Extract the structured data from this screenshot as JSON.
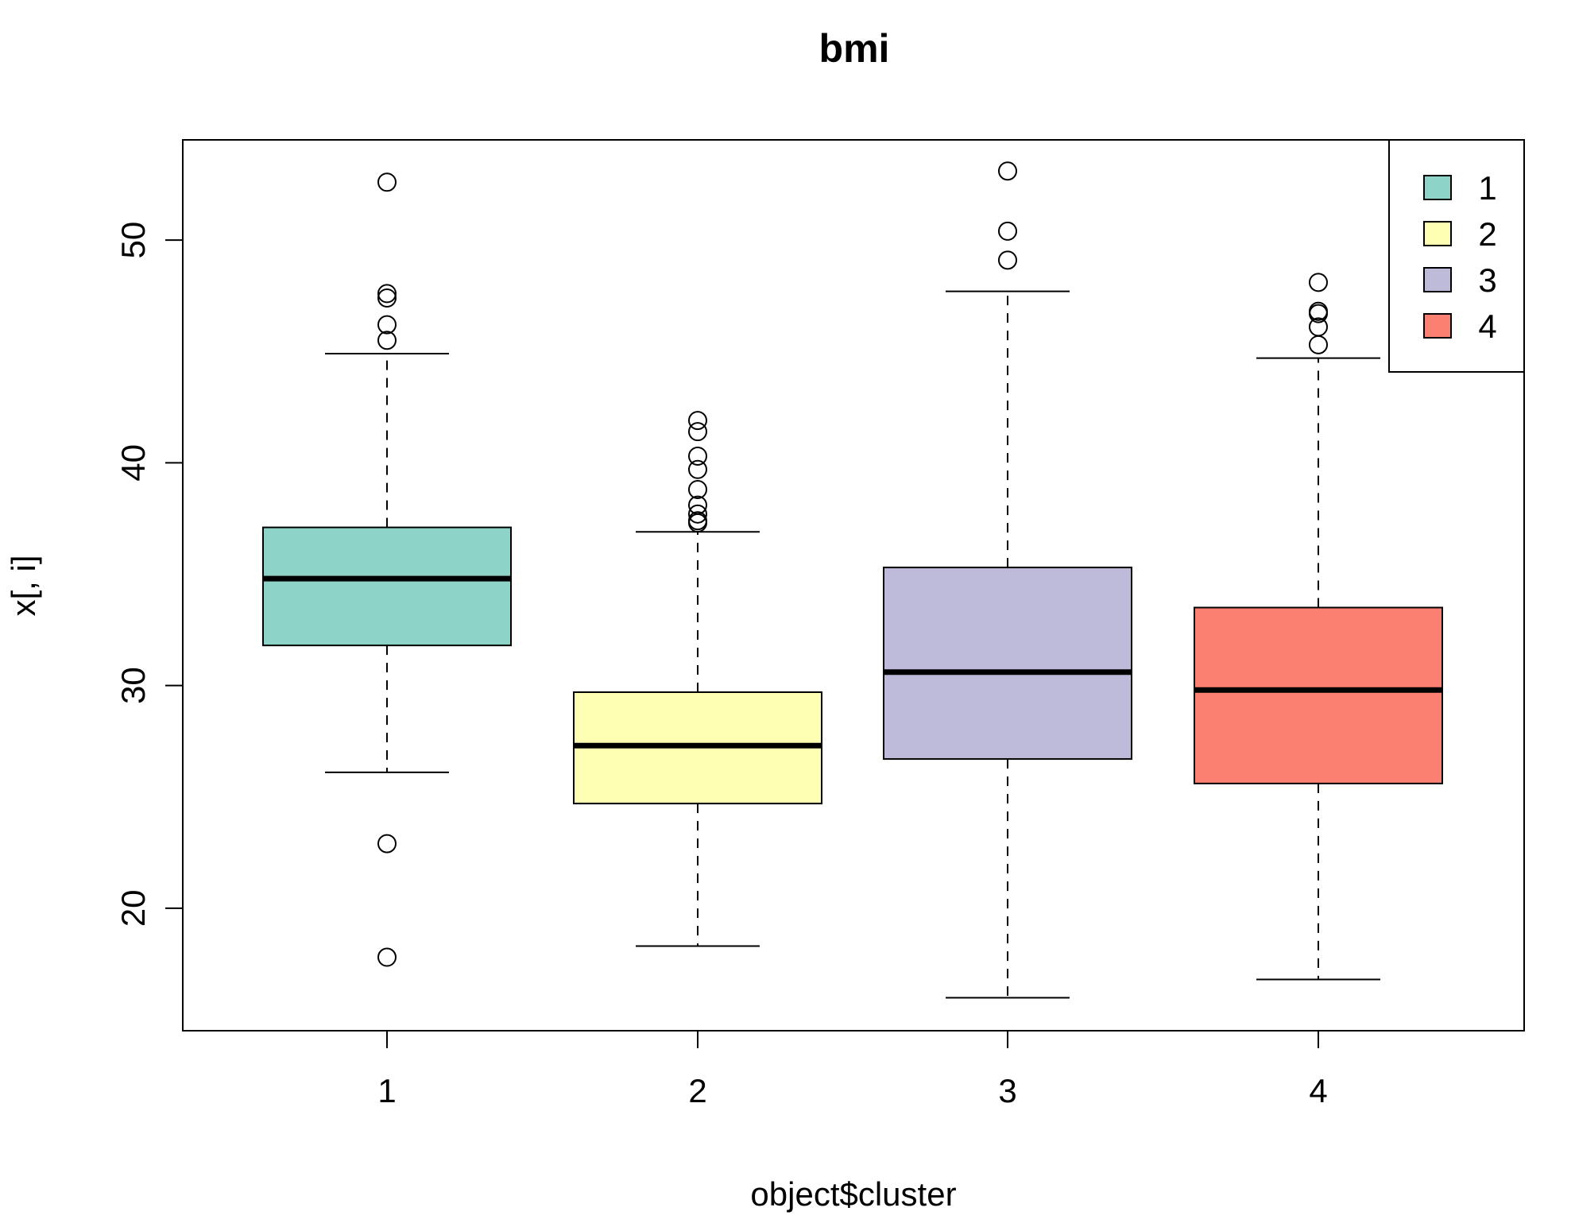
{
  "chart_data": {
    "type": "boxplot",
    "title": "bmi",
    "xlabel": "object$cluster",
    "ylabel": "x[, i]",
    "ylim": [
      14.5,
      54.5
    ],
    "yticks": [
      20,
      30,
      40,
      50
    ],
    "categories": [
      "1",
      "2",
      "3",
      "4"
    ],
    "colors": [
      "#8DD3C7",
      "#FFFFB3",
      "#BEBADA",
      "#FB8072"
    ],
    "boxes": [
      {
        "name": "1",
        "whisker_low": 26.1,
        "q1": 31.8,
        "median": 34.8,
        "q3": 37.1,
        "whisker_high": 44.9,
        "outliers": [
          52.6,
          47.6,
          47.4,
          46.2,
          45.5,
          22.9,
          17.8
        ]
      },
      {
        "name": "2",
        "whisker_low": 18.3,
        "q1": 24.7,
        "median": 27.3,
        "q3": 29.7,
        "whisker_high": 36.9,
        "outliers": [
          41.9,
          41.4,
          40.3,
          39.7,
          38.8,
          38.1,
          37.7,
          37.4,
          37.3
        ]
      },
      {
        "name": "3",
        "whisker_low": 15.98,
        "q1": 26.7,
        "median": 30.6,
        "q3": 35.3,
        "whisker_high": 47.7,
        "outliers": [
          53.1,
          50.4,
          49.1
        ]
      },
      {
        "name": "4",
        "whisker_low": 16.8,
        "q1": 25.6,
        "median": 29.8,
        "q3": 33.5,
        "whisker_high": 44.7,
        "outliers": [
          48.1,
          46.8,
          46.7,
          46.1,
          45.3
        ]
      }
    ],
    "legend": {
      "position": "top-right",
      "entries": [
        "1",
        "2",
        "3",
        "4"
      ]
    }
  }
}
